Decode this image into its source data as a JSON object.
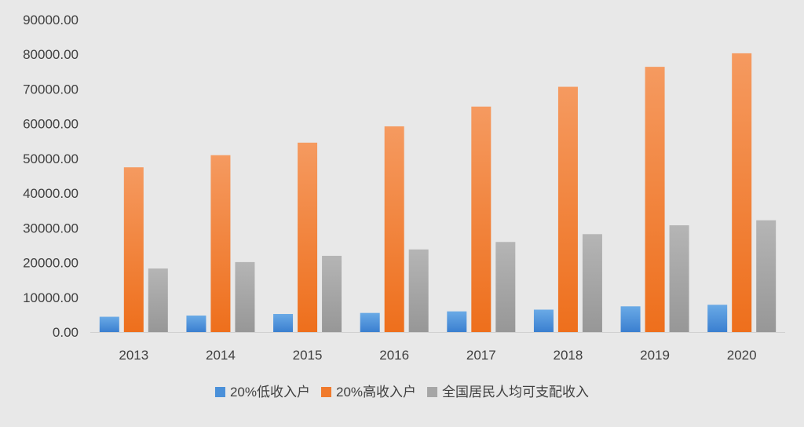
{
  "chart_data": {
    "type": "bar",
    "categories": [
      "2013",
      "2014",
      "2015",
      "2016",
      "2017",
      "2018",
      "2019",
      "2020"
    ],
    "series": [
      {
        "name": "20%低收入户",
        "color": "#4a90d9",
        "values": [
          4400,
          4750,
          5200,
          5500,
          5950,
          6450,
          7400,
          7850
        ]
      },
      {
        "name": "20%高收入户",
        "color": "#f07a2c",
        "values": [
          47450,
          50950,
          54550,
          59250,
          64950,
          70650,
          76400,
          80300
        ]
      },
      {
        "name": "全国居民人均可支配收入",
        "color": "#a6a6a6",
        "values": [
          18300,
          20150,
          21950,
          23800,
          25950,
          28200,
          30750,
          32200
        ]
      }
    ],
    "yticks": [
      "0.00",
      "10000.00",
      "20000.00",
      "30000.00",
      "40000.00",
      "50000.00",
      "60000.00",
      "70000.00",
      "80000.00",
      "90000.00"
    ],
    "ylim": [
      0,
      90000
    ],
    "grid": false,
    "legend_position": "bottom"
  }
}
